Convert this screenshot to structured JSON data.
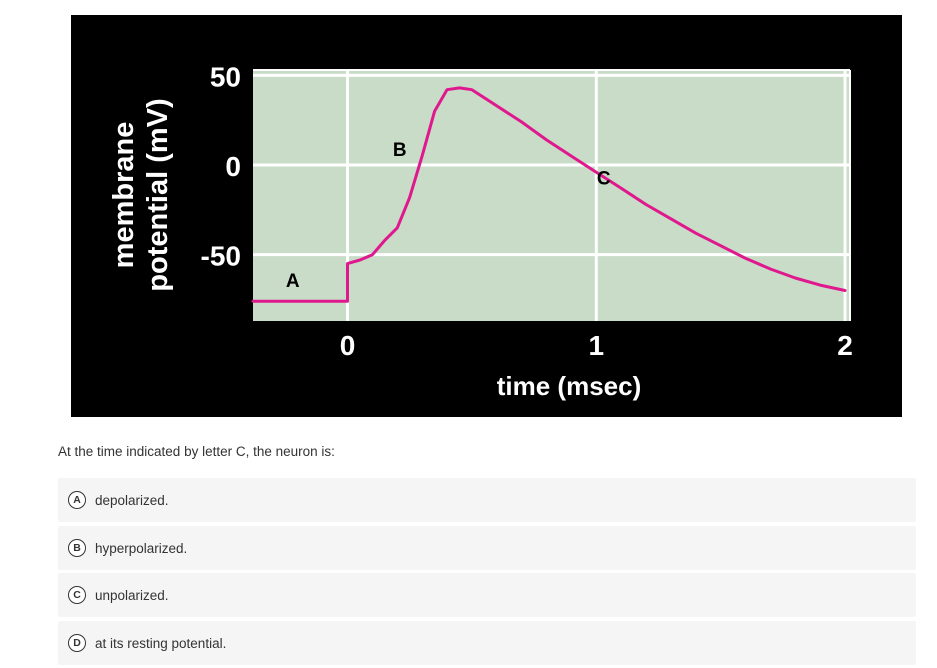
{
  "chart_data": {
    "type": "line",
    "ylabel": [
      "membrane",
      "potential (mV)"
    ],
    "xlabel": "time (msec)",
    "y_ticks": [
      "50",
      "0",
      "-50"
    ],
    "y_tick_values": [
      50,
      0,
      -50
    ],
    "x_ticks": [
      "0",
      "1",
      "2"
    ],
    "x_tick_values": [
      0,
      1,
      2
    ],
    "xlim": [
      -0.38,
      2.02
    ],
    "ylim": [
      -87,
      53
    ],
    "grid": true,
    "colors": {
      "plot_bg": "#c8dcc8",
      "grid": "#ffffff",
      "line": "#e0188e",
      "figure_bg": "#000000"
    },
    "series": [
      {
        "x": [
          -0.38,
          -0.01,
          0.0,
          0.0,
          0.05,
          0.1,
          0.15,
          0.2,
          0.25,
          0.3,
          0.35,
          0.4,
          0.45,
          0.5,
          0.6,
          0.7,
          0.8,
          0.9,
          1.0,
          1.1,
          1.2,
          1.3,
          1.4,
          1.5,
          1.6,
          1.7,
          1.8,
          1.9,
          2.0
        ],
        "y": [
          -76,
          -76,
          -76,
          -55,
          -53,
          -50,
          -42,
          -35,
          -18,
          5,
          30,
          42,
          43,
          42,
          33,
          24,
          14,
          5,
          -4,
          -13,
          -22,
          -30,
          -38,
          -45,
          -52,
          -58,
          -63,
          -67,
          -70
        ]
      }
    ],
    "annotations": [
      {
        "text": "A",
        "x": -0.22,
        "y": -68
      },
      {
        "text": "B",
        "x": 0.21,
        "y": 5
      },
      {
        "text": "C",
        "x": 1.03,
        "y": -11
      }
    ]
  },
  "menu": {
    "icon": "more-horizontal-icon",
    "glyph": "•••"
  },
  "question": {
    "text": "At the time indicated by letter C, the neuron is:"
  },
  "options": [
    {
      "letter": "A",
      "text": "depolarized."
    },
    {
      "letter": "B",
      "text": "hyperpolarized."
    },
    {
      "letter": "C",
      "text": "unpolarized."
    },
    {
      "letter": "D",
      "text": "at its resting potential."
    }
  ]
}
